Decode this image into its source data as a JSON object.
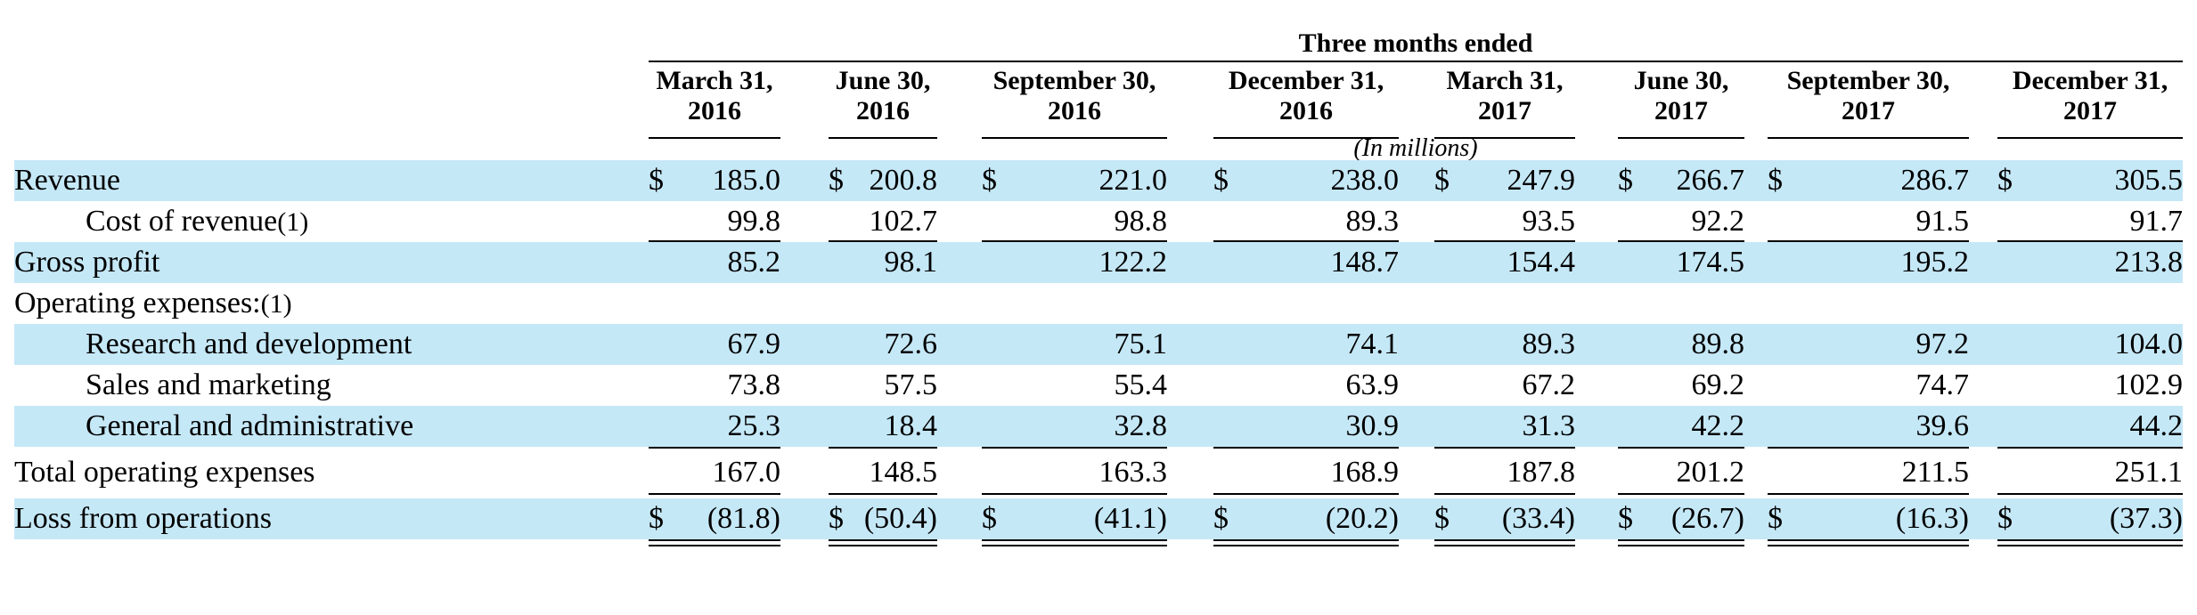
{
  "header": {
    "group_title": "Three months ended",
    "units": "(In millions)",
    "columns": [
      {
        "line1": "March 31,",
        "line2": "2016"
      },
      {
        "line1": "June 30,",
        "line2": "2016"
      },
      {
        "line1": "September 30,",
        "line2": "2016"
      },
      {
        "line1": "December 31,",
        "line2": "2016"
      },
      {
        "line1": "March 31,",
        "line2": "2017"
      },
      {
        "line1": "June 30,",
        "line2": "2017"
      },
      {
        "line1": "September 30,",
        "line2": "2017"
      },
      {
        "line1": "December 31,",
        "line2": "2017"
      }
    ]
  },
  "currency_symbol": "$",
  "rows": [
    {
      "label": "Revenue",
      "note": "",
      "indent": false,
      "shaded": true,
      "dollar": true,
      "values": [
        "185.0",
        "200.8",
        "221.0",
        "238.0",
        "247.9",
        "266.7",
        "286.7",
        "305.5"
      ]
    },
    {
      "label": "Cost of revenue",
      "note": "(1)",
      "indent": true,
      "shaded": false,
      "dollar": false,
      "values": [
        "99.8",
        "102.7",
        "98.8",
        "89.3",
        "93.5",
        "92.2",
        "91.5",
        "91.7"
      ]
    },
    {
      "label": "Gross profit",
      "note": "",
      "indent": false,
      "shaded": true,
      "dollar": false,
      "values": [
        "85.2",
        "98.1",
        "122.2",
        "148.7",
        "154.4",
        "174.5",
        "195.2",
        "213.8"
      ]
    },
    {
      "label": "Operating expenses:",
      "note": "(1)",
      "indent": false,
      "shaded": false,
      "dollar": false,
      "values": [
        "",
        "",
        "",
        "",
        "",
        "",
        "",
        ""
      ]
    },
    {
      "label": "Research and development",
      "note": "",
      "indent": true,
      "shaded": true,
      "dollar": false,
      "values": [
        "67.9",
        "72.6",
        "75.1",
        "74.1",
        "89.3",
        "89.8",
        "97.2",
        "104.0"
      ]
    },
    {
      "label": "Sales and marketing",
      "note": "",
      "indent": true,
      "shaded": false,
      "dollar": false,
      "values": [
        "73.8",
        "57.5",
        "55.4",
        "63.9",
        "67.2",
        "69.2",
        "74.7",
        "102.9"
      ]
    },
    {
      "label": "General and administrative",
      "note": "",
      "indent": true,
      "shaded": true,
      "dollar": false,
      "values": [
        "25.3",
        "18.4",
        "32.8",
        "30.9",
        "31.3",
        "42.2",
        "39.6",
        "44.2"
      ]
    },
    {
      "label": "Total operating expenses",
      "note": "",
      "indent": false,
      "shaded": false,
      "dollar": false,
      "values": [
        "167.0",
        "148.5",
        "163.3",
        "168.9",
        "187.8",
        "201.2",
        "211.5",
        "251.1"
      ]
    },
    {
      "label": "Loss from operations",
      "note": "",
      "indent": false,
      "shaded": true,
      "dollar": true,
      "values": [
        "(81.8)",
        "(50.4)",
        "(41.1)",
        "(20.2)",
        "(33.4)",
        "(26.7)",
        "(16.3)",
        "(37.3)"
      ]
    }
  ]
}
